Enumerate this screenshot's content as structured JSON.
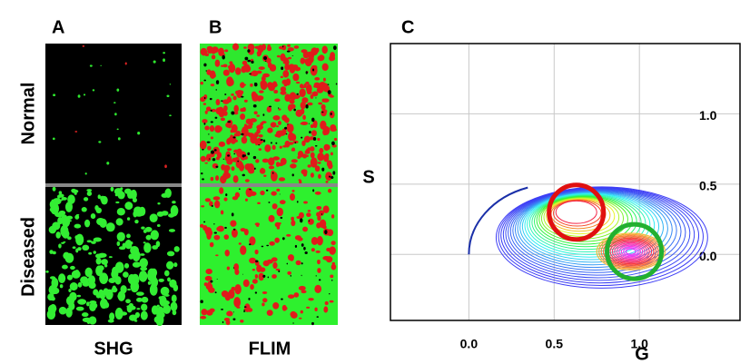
{
  "panel_a": {
    "label": "A",
    "caption": "SHG"
  },
  "panel_b": {
    "label": "B",
    "caption": "FLIM"
  },
  "rows": [
    "Normal",
    "Diseased"
  ],
  "panel_c": {
    "label": "C",
    "x_label": "G",
    "y_label": "S",
    "xlim": [
      -0.46,
      1.59
    ],
    "ylim": [
      -0.47,
      1.5
    ],
    "xticks": [
      {
        "value": 0,
        "label": "0.0"
      },
      {
        "value": 0.5,
        "label": "0.5"
      },
      {
        "value": 1,
        "label": "1.0"
      }
    ],
    "yticks": [
      {
        "value": 0,
        "label": "0.0"
      },
      {
        "value": 0.5,
        "label": "0.5"
      },
      {
        "value": 1,
        "label": "1.0"
      }
    ]
  }
}
